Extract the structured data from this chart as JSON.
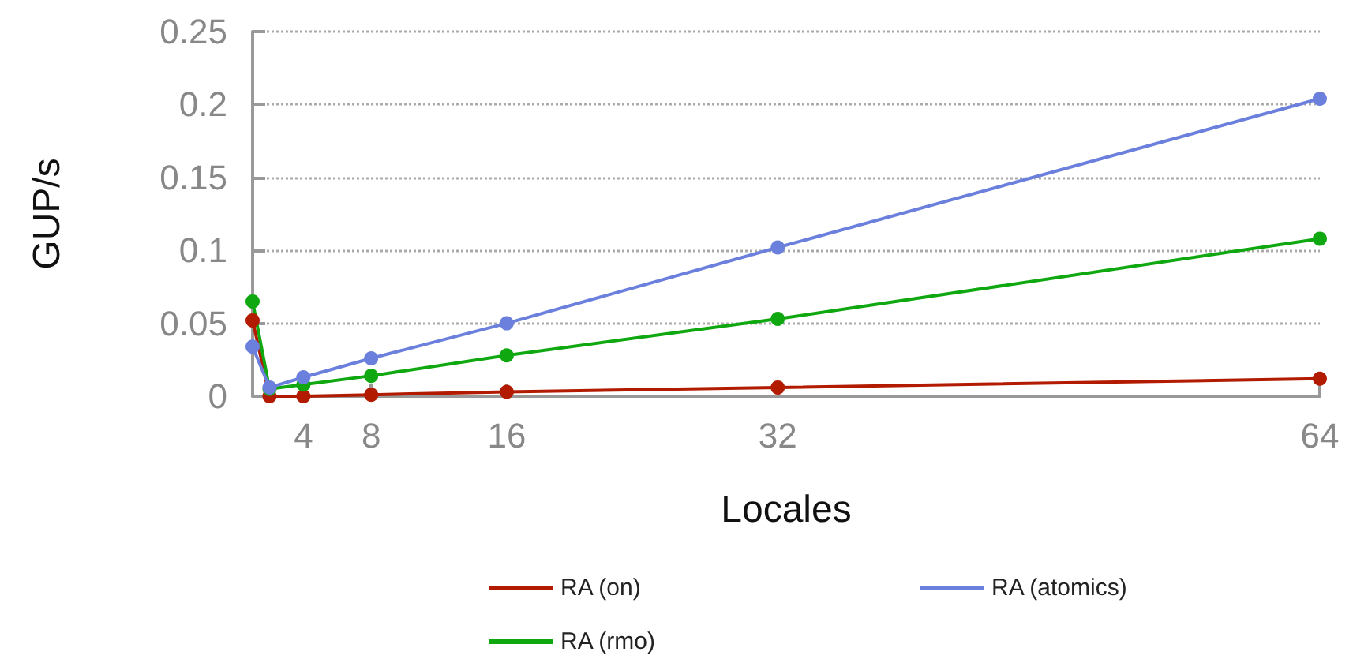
{
  "chart_data": {
    "type": "line",
    "xlabel": "Locales",
    "ylabel": "GUP/s",
    "x": [
      1,
      2,
      4,
      8,
      16,
      32,
      64
    ],
    "series": [
      {
        "name": "RA (on)",
        "color": "#b31b00",
        "values": [
          0.052,
          0,
          0,
          0.001,
          0.003,
          0.006,
          0.012
        ]
      },
      {
        "name": "RA (rmo)",
        "color": "#10a810",
        "values": [
          0.065,
          0.005,
          0.008,
          0.014,
          0.028,
          0.053,
          0.108
        ]
      },
      {
        "name": "RA (atomics)",
        "color": "#6b7fdd",
        "values": [
          0.034,
          0.006,
          0.013,
          0.026,
          0.05,
          0.102,
          0.204
        ]
      }
    ],
    "xlim": [
      1,
      64
    ],
    "xticks": [
      4,
      8,
      16,
      32,
      64
    ],
    "ylim": [
      0,
      0.25
    ],
    "yticks": [
      0,
      0.05,
      0.1,
      0.15,
      0.2,
      0.25
    ],
    "grid": "y",
    "legend": "bottom",
    "marker": "circle",
    "line_style": "solid"
  }
}
